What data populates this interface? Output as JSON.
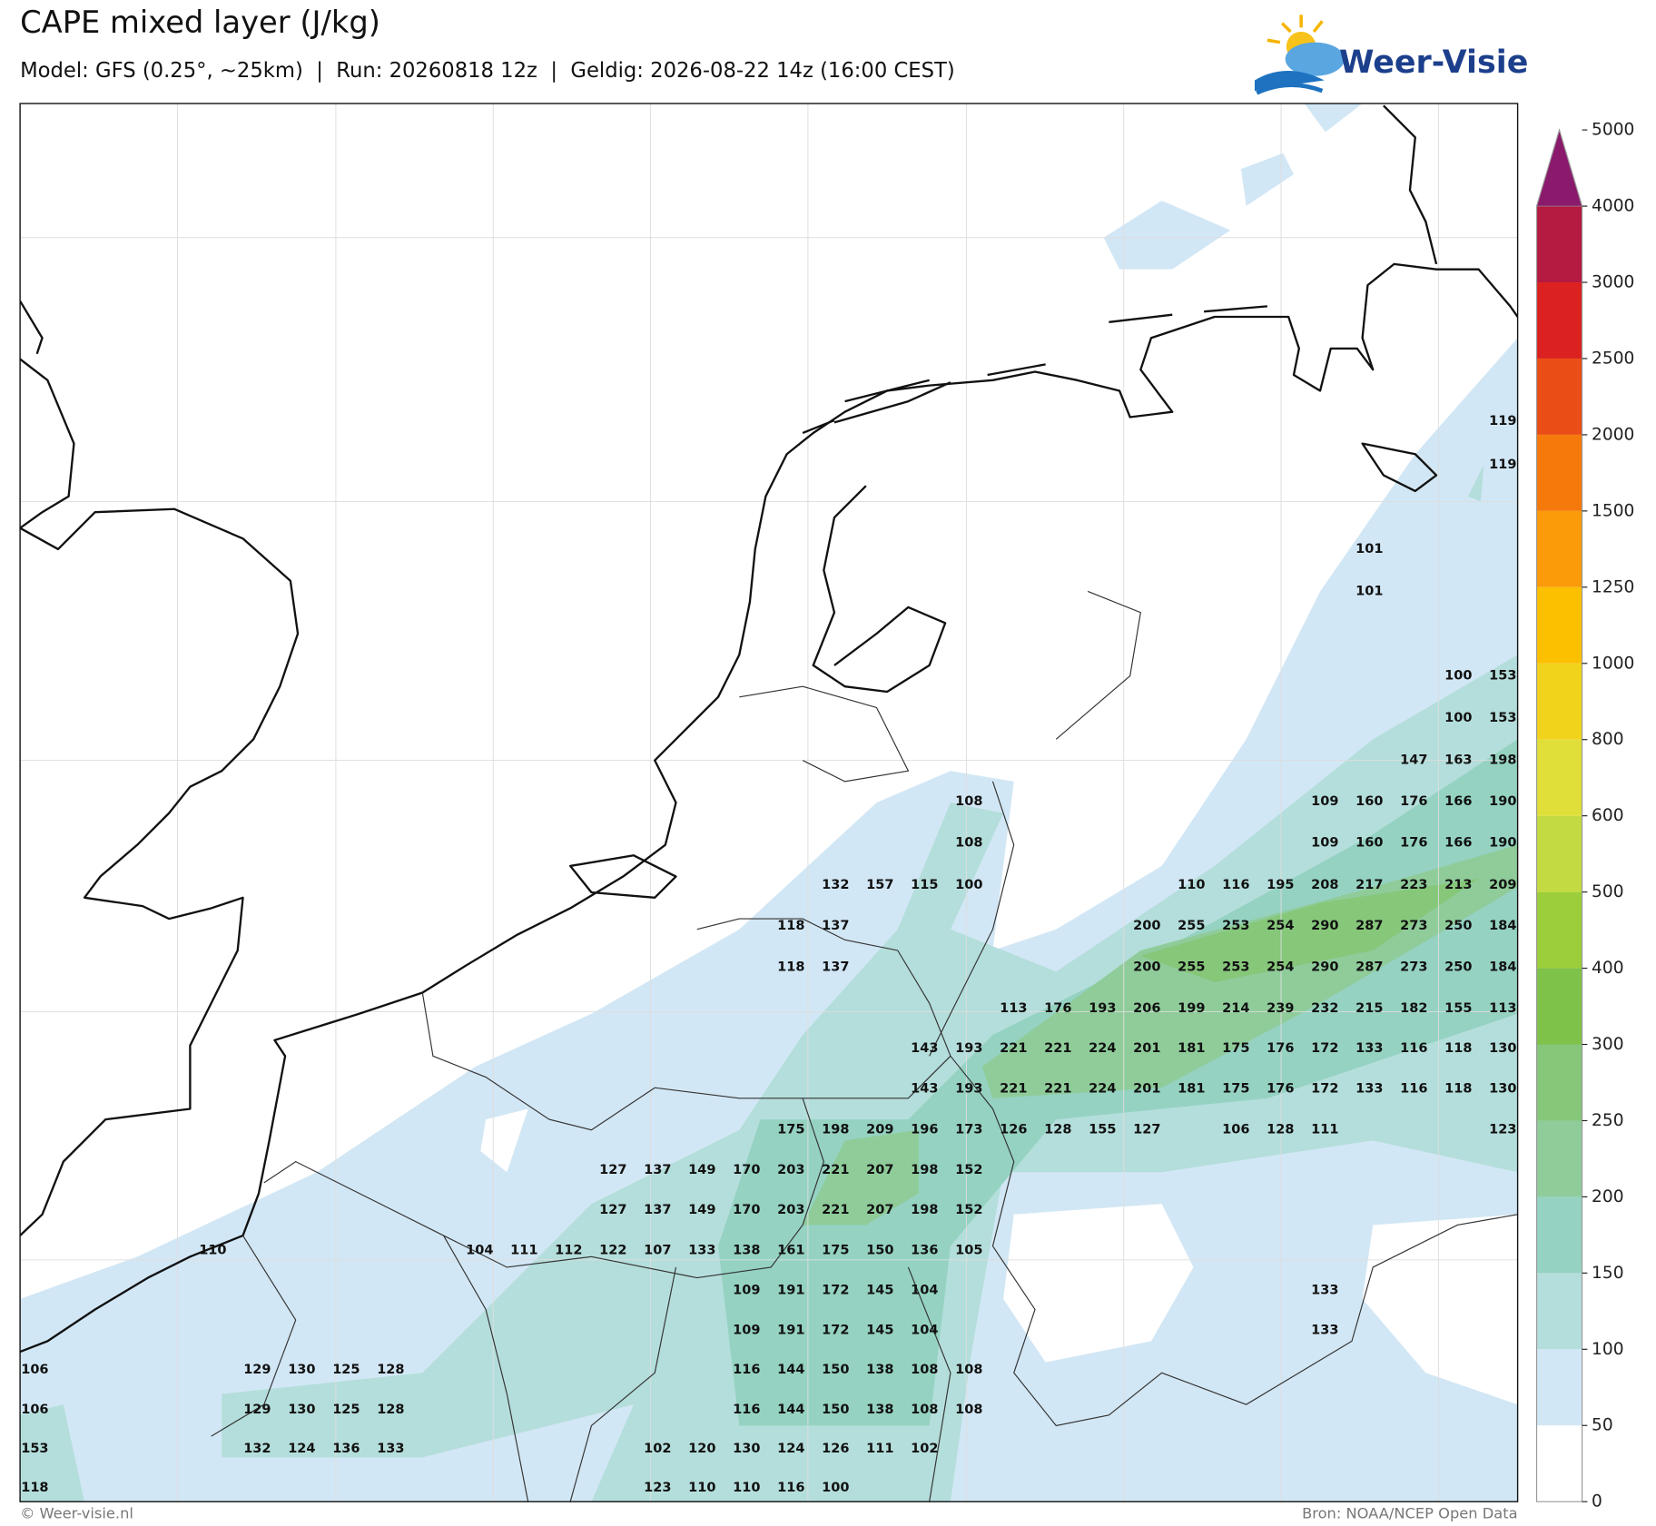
{
  "header": {
    "title": "CAPE mixed layer (J/kg)",
    "subtitle": "Model: GFS (0.25°, ~25km)  |  Run: 20260818 12z  |  Geldig: 2026-08-22 14z (16:00 CEST)",
    "logo": "Weer-Visie"
  },
  "map": {
    "cape_labels": [
      [
        null,
        null,
        null,
        null,
        null,
        null,
        null,
        null,
        null,
        null,
        null,
        null,
        null,
        null,
        null,
        null,
        null,
        null,
        null,
        null,
        null,
        null,
        null,
        null,
        null,
        null,
        null,
        null,
        null,
        null,
        null,
        null,
        null,
        119
      ],
      [
        null,
        null,
        null,
        null,
        null,
        null,
        null,
        null,
        null,
        null,
        null,
        null,
        null,
        null,
        null,
        null,
        null,
        null,
        null,
        null,
        null,
        null,
        null,
        null,
        null,
        null,
        null,
        null,
        null,
        null,
        null,
        null,
        null,
        119
      ],
      [
        null,
        null,
        null,
        null,
        null,
        null,
        null,
        null,
        null,
        null,
        null,
        null,
        null,
        null,
        null,
        null,
        null,
        null,
        null,
        null,
        null,
        null,
        null,
        null,
        null,
        null,
        null,
        null,
        null,
        null,
        101,
        null,
        null,
        null
      ],
      [
        null,
        null,
        null,
        null,
        null,
        null,
        null,
        null,
        null,
        null,
        null,
        null,
        null,
        null,
        null,
        null,
        null,
        null,
        null,
        null,
        null,
        null,
        null,
        null,
        null,
        null,
        null,
        null,
        null,
        null,
        101,
        null,
        null,
        null
      ],
      [
        null,
        null,
        null,
        null,
        null,
        null,
        null,
        null,
        null,
        null,
        null,
        null,
        null,
        null,
        null,
        null,
        null,
        null,
        null,
        null,
        null,
        null,
        null,
        null,
        null,
        null,
        null,
        null,
        null,
        null,
        null,
        null,
        100,
        153
      ],
      [
        null,
        null,
        null,
        null,
        null,
        null,
        null,
        null,
        null,
        null,
        null,
        null,
        null,
        null,
        null,
        null,
        null,
        null,
        null,
        null,
        null,
        null,
        null,
        null,
        null,
        null,
        null,
        null,
        null,
        null,
        null,
        null,
        100,
        153
      ],
      [
        null,
        null,
        null,
        null,
        null,
        null,
        null,
        null,
        null,
        null,
        null,
        null,
        null,
        null,
        null,
        null,
        null,
        null,
        null,
        null,
        null,
        null,
        null,
        null,
        null,
        null,
        null,
        null,
        null,
        null,
        null,
        147,
        163,
        198
      ],
      [
        null,
        null,
        null,
        null,
        null,
        null,
        null,
        null,
        null,
        null,
        null,
        null,
        null,
        null,
        null,
        null,
        null,
        null,
        null,
        null,
        null,
        108,
        null,
        null,
        null,
        null,
        null,
        null,
        null,
        109,
        160,
        176,
        166,
        190
      ],
      [
        null,
        null,
        null,
        null,
        null,
        null,
        null,
        null,
        null,
        null,
        null,
        null,
        null,
        null,
        null,
        null,
        null,
        null,
        null,
        null,
        null,
        108,
        null,
        null,
        null,
        null,
        null,
        null,
        null,
        109,
        160,
        176,
        166,
        190
      ],
      [
        null,
        null,
        null,
        null,
        null,
        null,
        null,
        null,
        null,
        null,
        null,
        null,
        null,
        null,
        null,
        null,
        null,
        null,
        132,
        157,
        115,
        100,
        null,
        null,
        null,
        null,
        110,
        116,
        195,
        208,
        217,
        223,
        213,
        209
      ],
      [
        null,
        null,
        null,
        null,
        null,
        null,
        null,
        null,
        null,
        null,
        null,
        null,
        null,
        null,
        null,
        null,
        null,
        118,
        137,
        null,
        null,
        null,
        null,
        null,
        null,
        200,
        255,
        253,
        254,
        290,
        287,
        273,
        250,
        184
      ],
      [
        null,
        null,
        null,
        null,
        null,
        null,
        null,
        null,
        null,
        null,
        null,
        null,
        null,
        null,
        null,
        null,
        null,
        118,
        137,
        null,
        null,
        null,
        null,
        null,
        null,
        200,
        255,
        253,
        254,
        290,
        287,
        273,
        250,
        184
      ],
      [
        null,
        null,
        null,
        null,
        null,
        null,
        null,
        null,
        null,
        null,
        null,
        null,
        null,
        null,
        null,
        null,
        null,
        null,
        null,
        null,
        null,
        null,
        113,
        176,
        193,
        206,
        199,
        214,
        239,
        232,
        215,
        182,
        155,
        113
      ],
      [
        null,
        null,
        null,
        null,
        null,
        null,
        null,
        null,
        null,
        null,
        null,
        null,
        null,
        null,
        null,
        null,
        null,
        null,
        null,
        null,
        143,
        193,
        221,
        221,
        224,
        201,
        181,
        175,
        176,
        172,
        133,
        116,
        118,
        130
      ],
      [
        null,
        null,
        null,
        null,
        null,
        null,
        null,
        null,
        null,
        null,
        null,
        null,
        null,
        null,
        null,
        null,
        null,
        null,
        null,
        null,
        143,
        193,
        221,
        221,
        224,
        201,
        181,
        175,
        176,
        172,
        133,
        116,
        118,
        130
      ],
      [
        null,
        null,
        null,
        null,
        null,
        null,
        null,
        null,
        null,
        null,
        null,
        null,
        null,
        null,
        null,
        null,
        null,
        175,
        198,
        209,
        196,
        173,
        126,
        128,
        155,
        127,
        null,
        106,
        128,
        111,
        null,
        null,
        null,
        123
      ],
      [
        null,
        null,
        null,
        null,
        null,
        null,
        null,
        null,
        null,
        null,
        null,
        null,
        null,
        127,
        137,
        149,
        170,
        203,
        221,
        207,
        198,
        152,
        null,
        null,
        null,
        null,
        null,
        null,
        null,
        null,
        null,
        null,
        null,
        null
      ],
      [
        null,
        null,
        null,
        null,
        null,
        null,
        null,
        null,
        null,
        null,
        null,
        null,
        null,
        127,
        137,
        149,
        170,
        203,
        221,
        207,
        198,
        152,
        null,
        null,
        null,
        null,
        null,
        null,
        null,
        null,
        null,
        null,
        null,
        null
      ],
      [
        null,
        null,
        null,
        null,
        110,
        null,
        null,
        null,
        null,
        null,
        104,
        111,
        112,
        122,
        107,
        133,
        138,
        161,
        175,
        150,
        136,
        105,
        null,
        null,
        null,
        null,
        null,
        null,
        null,
        null,
        null,
        null,
        null,
        null
      ],
      [
        null,
        null,
        null,
        null,
        null,
        null,
        null,
        null,
        null,
        null,
        null,
        null,
        null,
        null,
        null,
        null,
        109,
        191,
        172,
        145,
        104,
        null,
        null,
        null,
        null,
        null,
        null,
        null,
        null,
        133,
        null,
        null,
        null,
        null
      ],
      [
        null,
        null,
        null,
        null,
        null,
        null,
        null,
        null,
        null,
        null,
        null,
        null,
        null,
        null,
        null,
        null,
        109,
        191,
        172,
        145,
        104,
        null,
        null,
        null,
        null,
        null,
        null,
        null,
        null,
        133,
        null,
        null,
        null,
        null
      ],
      [
        106,
        null,
        null,
        null,
        null,
        129,
        130,
        125,
        128,
        null,
        null,
        null,
        null,
        null,
        null,
        null,
        116,
        144,
        150,
        138,
        108,
        108,
        null,
        null,
        null,
        null,
        null,
        null,
        null,
        null,
        null,
        null,
        null,
        null
      ],
      [
        106,
        null,
        null,
        null,
        null,
        129,
        130,
        125,
        128,
        null,
        null,
        null,
        null,
        null,
        null,
        null,
        116,
        144,
        150,
        138,
        108,
        108,
        null,
        null,
        null,
        null,
        null,
        null,
        null,
        null,
        null,
        null,
        null,
        null
      ],
      [
        153,
        null,
        null,
        null,
        null,
        132,
        124,
        136,
        133,
        null,
        null,
        null,
        null,
        null,
        102,
        120,
        130,
        124,
        126,
        111,
        102,
        null,
        null,
        null,
        null,
        null,
        null,
        null,
        null,
        null,
        null,
        null,
        null,
        null
      ],
      [
        118,
        null,
        null,
        null,
        null,
        null,
        null,
        null,
        null,
        null,
        null,
        null,
        null,
        null,
        123,
        110,
        110,
        116,
        100,
        null,
        null,
        null,
        null,
        null,
        null,
        null,
        null,
        null,
        null,
        null,
        null,
        null,
        null,
        null
      ]
    ]
  },
  "colorbar": {
    "ticks": [
      0,
      50,
      100,
      150,
      200,
      250,
      300,
      400,
      500,
      600,
      800,
      1000,
      1250,
      1500,
      2000,
      2500,
      3000,
      4000,
      5000
    ],
    "colors": [
      "#ffffff",
      "#d2e7f5",
      "#b4dedb",
      "#95d2c2",
      "#8fcc9a",
      "#86c77a",
      "#7ec24a",
      "#9ccd3a",
      "#c3da42",
      "#e0df3a",
      "#f2d31c",
      "#fcc000",
      "#fb9b0a",
      "#f67a0b",
      "#ea4d15",
      "#dc2121",
      "#b51a40",
      "#8a1a6c"
    ]
  },
  "footer": {
    "copyright": "© Weer-visie.nl",
    "source": "Bron: NOAA/NCEP Open Data"
  }
}
